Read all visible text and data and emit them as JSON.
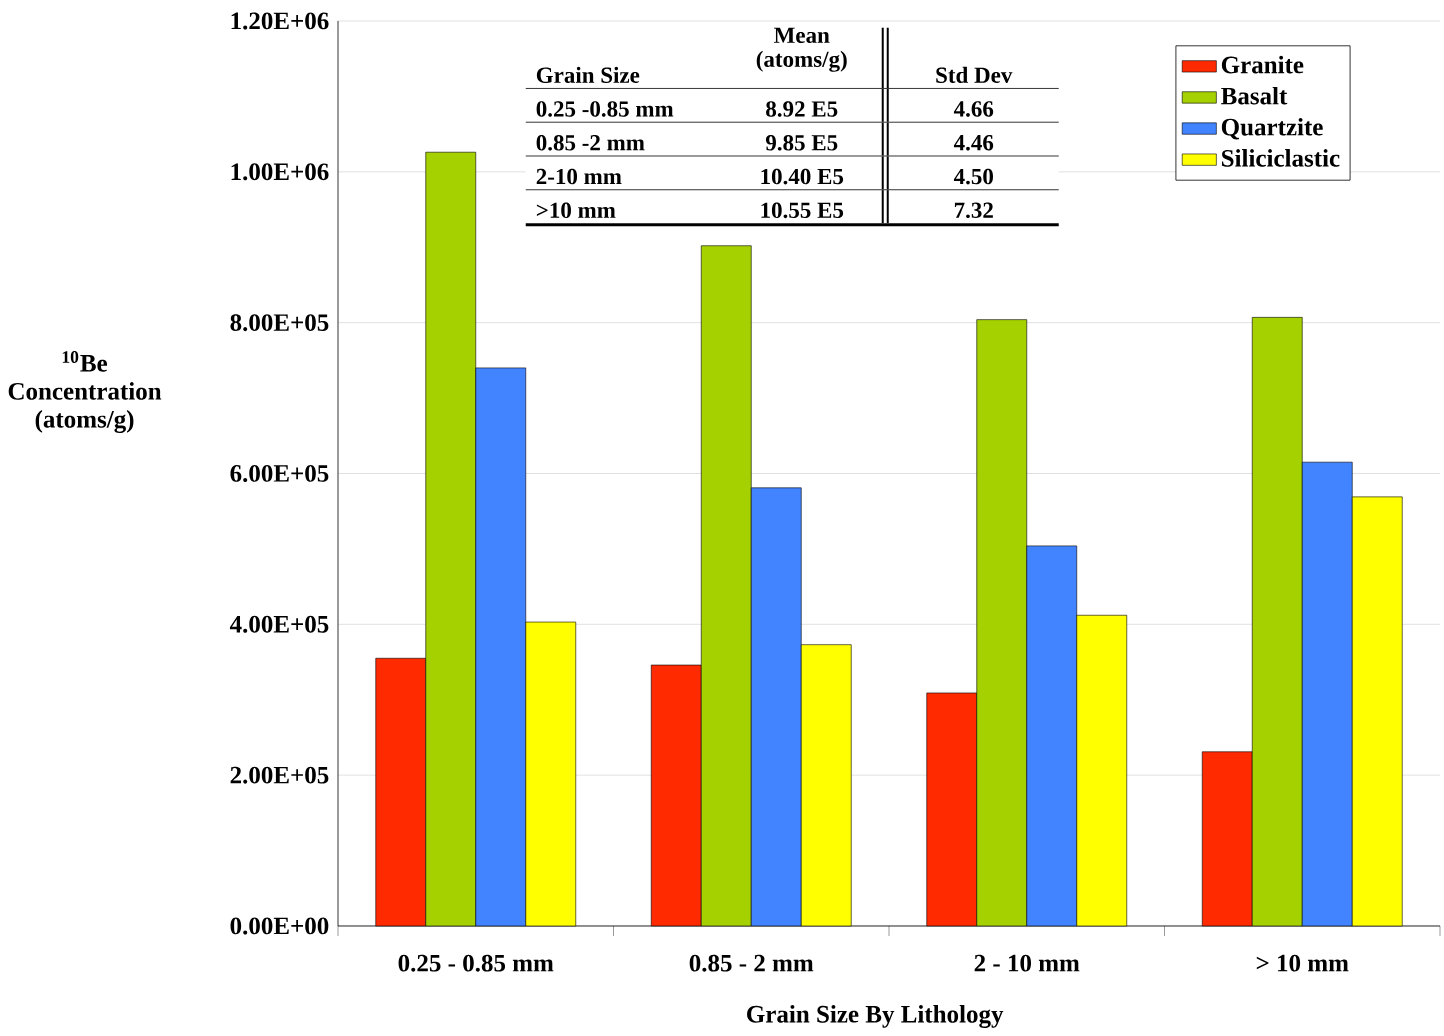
{
  "chart_data": {
    "type": "bar",
    "xlabel": "Grain Size By Lithology",
    "ylabel": "$^{10}$Be Concentration (atoms/g)",
    "categories": [
      "0.25 - 0.85 mm",
      "0.85 - 2 mm",
      "2 - 10 mm",
      "> 10 mm"
    ],
    "series": [
      {
        "name": "Granite",
        "color": "#ff2a00",
        "values": [
          355000,
          346000,
          309000,
          231000
        ]
      },
      {
        "name": "Basalt",
        "color": "#a6d100",
        "values": [
          1026000,
          902000,
          804000,
          807000
        ]
      },
      {
        "name": "Quartzite",
        "color": "#4284ff",
        "values": [
          740000,
          581000,
          504000,
          615000
        ]
      },
      {
        "name": "Siliciclastic",
        "color": "#ffff00",
        "values": [
          403000,
          373000,
          412000,
          569000
        ]
      }
    ],
    "ylim": [
      0,
      1200000
    ],
    "yticks": [
      {
        "value": 0,
        "label": "0.00E+00"
      },
      {
        "value": 200000,
        "label": "2.00E+05"
      },
      {
        "value": 400000,
        "label": "4.00E+05"
      },
      {
        "value": 600000,
        "label": "6.00E+05"
      },
      {
        "value": 800000,
        "label": "8.00E+05"
      },
      {
        "value": 1000000,
        "label": "1.00E+06"
      },
      {
        "value": 1200000,
        "label": "1.20E+06"
      }
    ],
    "grid": "y",
    "legend": "top right",
    "annotations": [
      "Grain Size",
      "Mean (atoms/g)",
      "Std Dev",
      "0.25 -0.85 mm",
      "8.92  E5",
      "4.66",
      "0.85 -2 mm",
      "9.85  E5",
      "4.46",
      "2-10 mm",
      "10.40  E5",
      "4.50",
      ">10 mm",
      "10.55  E5",
      "7.32"
    ]
  }
}
